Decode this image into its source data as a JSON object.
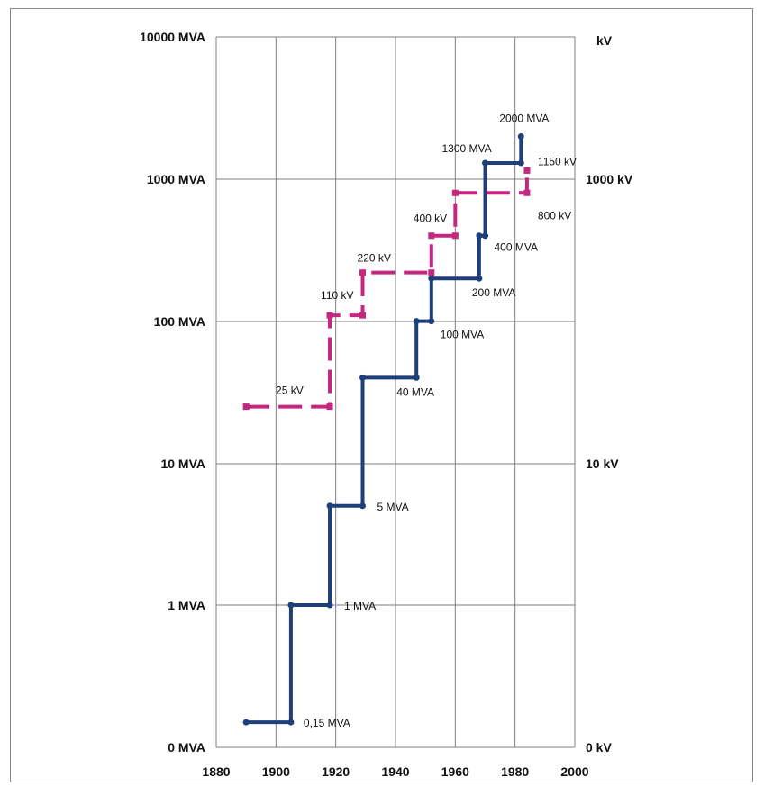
{
  "chart_data": {
    "type": "line",
    "title": "",
    "xlabel": "",
    "ylabel": "",
    "xlim": [
      1880,
      2000
    ],
    "x_ticks": [
      "1880",
      "1900",
      "1920",
      "1940",
      "1960",
      "1980",
      "2000"
    ],
    "y_left_ticks": [
      "0 MVA",
      "1 MVA",
      "10 MVA",
      "100 MVA",
      "1000 MVA",
      "10000 MVA"
    ],
    "y_right_ticks": [
      "0 kV",
      "10 kV",
      "1000 kV"
    ],
    "y_right_unit": "kV",
    "y_scale": "log",
    "grid": true,
    "series": [
      {
        "color": "#1f3f7a",
        "style": "solid",
        "points": [
          [
            1890,
            0.15
          ],
          [
            1905,
            0.15
          ],
          [
            1905,
            1
          ],
          [
            1918,
            1
          ],
          [
            1918,
            5
          ],
          [
            1929,
            5
          ],
          [
            1929,
            40
          ],
          [
            1947,
            40
          ],
          [
            1947,
            100
          ],
          [
            1952,
            100
          ],
          [
            1952,
            200
          ],
          [
            1968,
            200
          ],
          [
            1968,
            400
          ],
          [
            1970,
            400
          ],
          [
            1970,
            1300
          ],
          [
            1982,
            1300
          ],
          [
            1982,
            2000
          ]
        ],
        "labels": [
          {
            "text": "0,15 MVA",
            "x": 1905,
            "y": 0.15
          },
          {
            "text": "1 MVA",
            "x": 1918,
            "y": 1
          },
          {
            "text": "5 MVA",
            "x": 1929,
            "y": 5
          },
          {
            "text": "40 MVA",
            "x": 1947,
            "y": 40
          },
          {
            "text": "100 MVA",
            "x": 1952,
            "y": 100
          },
          {
            "text": "200 MVA",
            "x": 1968,
            "y": 200
          },
          {
            "text": "400 MVA",
            "x": 1970,
            "y": 400
          },
          {
            "text": "1300 MVA",
            "x": 1970,
            "y": 1300
          },
          {
            "text": "2000 MVA",
            "x": 1982,
            "y": 2000
          }
        ]
      },
      {
        "color": "#c4277f",
        "style": "dashed",
        "points": [
          [
            1890,
            25
          ],
          [
            1918,
            25
          ],
          [
            1918,
            110
          ],
          [
            1929,
            110
          ],
          [
            1929,
            220
          ],
          [
            1952,
            220
          ],
          [
            1952,
            400
          ],
          [
            1960,
            400
          ],
          [
            1960,
            800
          ],
          [
            1984,
            800
          ],
          [
            1984,
            1150
          ]
        ],
        "labels": [
          {
            "text": "25 kV",
            "x": 1918,
            "y": 25
          },
          {
            "text": "110 kV",
            "x": 1918,
            "y": 110
          },
          {
            "text": "220 kV",
            "x": 1929,
            "y": 220
          },
          {
            "text": "400 kV",
            "x": 1952,
            "y": 400
          },
          {
            "text": "800 kV",
            "x": 1984,
            "y": 800
          },
          {
            "text": "1150 kV",
            "x": 1984,
            "y": 1150
          }
        ]
      }
    ]
  }
}
